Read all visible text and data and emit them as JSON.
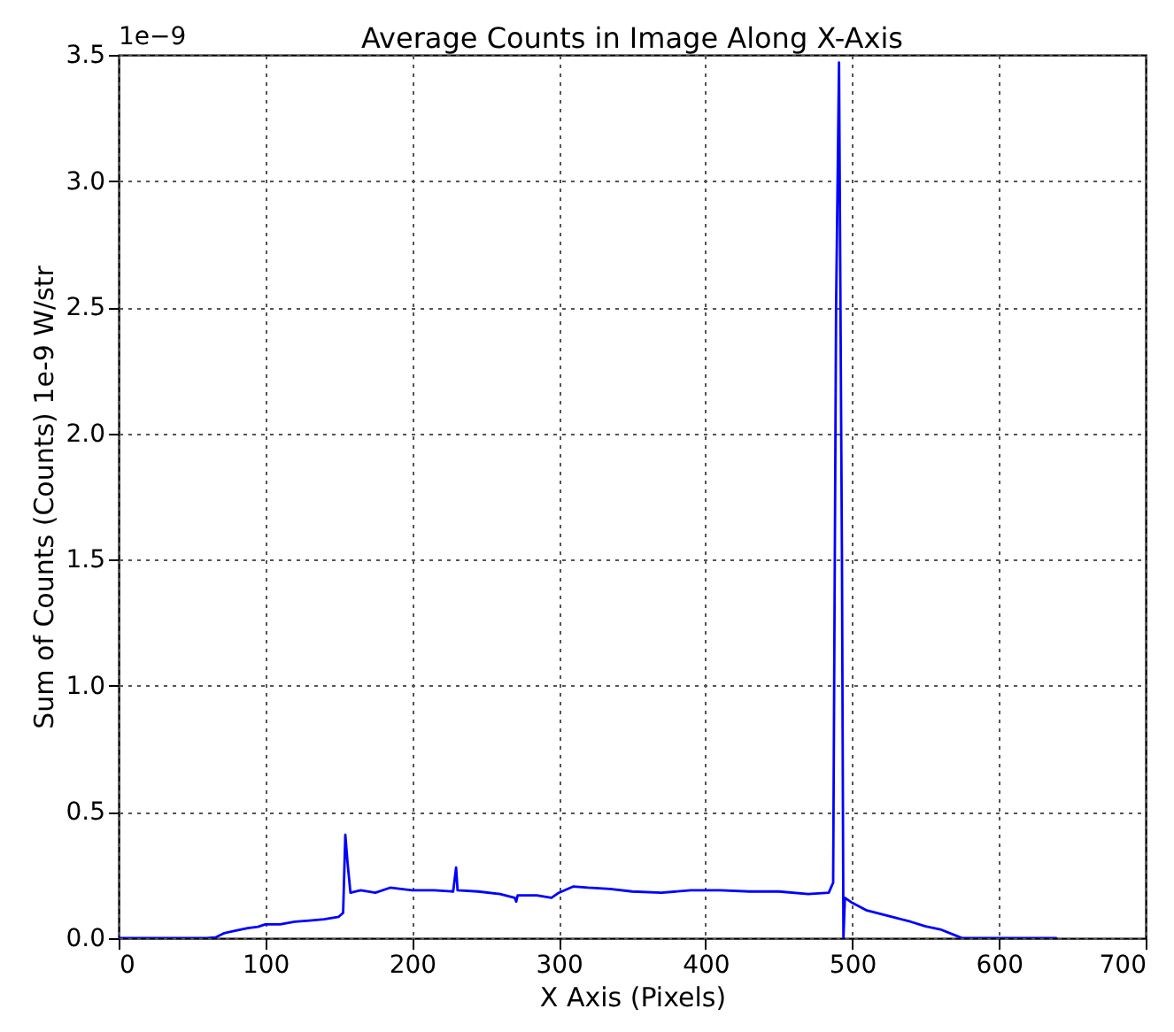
{
  "chart_data": {
    "type": "line",
    "title": "Average Counts in Image Along X-Axis",
    "xlabel": "X Axis (Pixels)",
    "ylabel": "Sum of Counts (Counts) 1e-9 W/str",
    "annotations": [
      "1e−9"
    ],
    "series": [
      {
        "color": "#0000ff",
        "x": [
          0,
          30,
          60,
          66,
          72,
          80,
          88,
          95,
          100,
          110,
          120,
          130,
          140,
          150,
          153,
          154.5,
          156,
          158,
          165,
          175,
          185,
          200,
          215,
          228,
          230,
          231,
          245,
          260,
          270,
          271,
          272,
          285,
          295,
          300,
          310,
          320,
          335,
          350,
          370,
          390,
          410,
          430,
          450,
          470,
          484,
          487,
          489,
          491,
          493,
          494,
          495,
          500,
          510,
          520,
          530,
          540,
          550,
          560,
          570,
          575,
          600,
          639
        ],
        "values": [
          0,
          0,
          0,
          0.003,
          0.02,
          0.03,
          0.04,
          0.045,
          0.055,
          0.055,
          0.065,
          0.07,
          0.075,
          0.085,
          0.1,
          0.41,
          0.3,
          0.18,
          0.19,
          0.18,
          0.2,
          0.19,
          0.19,
          0.185,
          0.28,
          0.19,
          0.185,
          0.175,
          0.16,
          0.145,
          0.17,
          0.17,
          0.16,
          0.18,
          0.205,
          0.2,
          0.195,
          0.185,
          0.18,
          0.19,
          0.19,
          0.185,
          0.185,
          0.175,
          0.18,
          0.22,
          2.5,
          3.47,
          1.5,
          0,
          0.16,
          0.14,
          0.11,
          0.095,
          0.08,
          0.065,
          0.047,
          0.035,
          0.012,
          0,
          0,
          0
        ]
      }
    ],
    "xlim": [
      0,
      700
    ],
    "xticks": [
      0,
      100,
      200,
      300,
      400,
      500,
      600,
      700
    ],
    "ylim": [
      0,
      3.5
    ],
    "yticks": [
      {
        "value": 0,
        "label": "0.0"
      },
      0.5,
      {
        "value": 1,
        "label": "1.0"
      },
      1.5,
      {
        "value": 2,
        "label": "2.0"
      },
      2.5,
      {
        "value": 3,
        "label": "3.0"
      },
      3.5
    ],
    "grid": true,
    "line_style": "solid",
    "marker": "none"
  }
}
